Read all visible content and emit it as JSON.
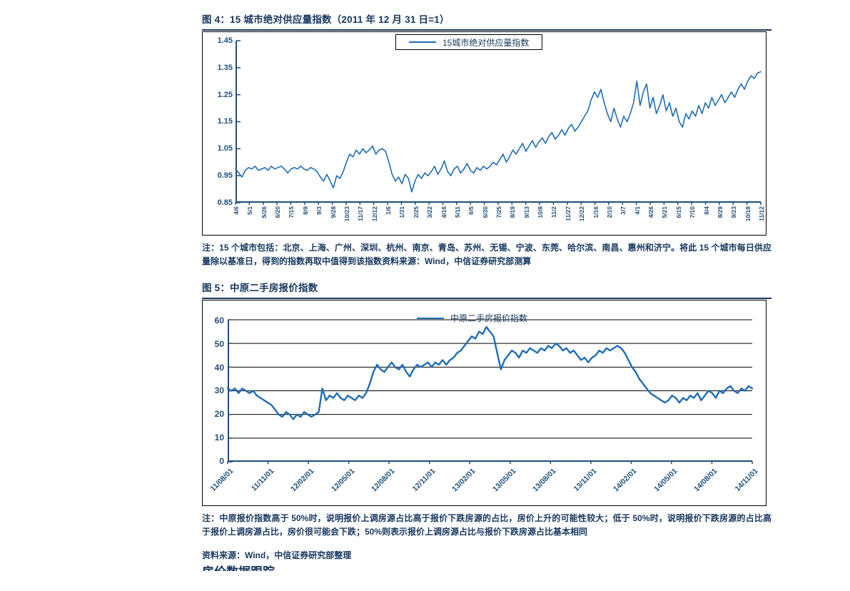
{
  "colors": {
    "navy": "#17375e",
    "axis_blue": "#1f4e79",
    "line_blue": "#1f6cb5",
    "gridline": "#000000",
    "chart_border": "#000000",
    "page_background": "#ffffff"
  },
  "figure4": {
    "title": "图 4：15 城市绝对供应量指数（2011 年 12 月 31 日=1）",
    "legend": "15城市绝对供应量指数",
    "note": "注：15 个城市包括：北京、上海、广州、深圳、杭州、南京、青岛、苏州、无锡、宁波、东莞、哈尔滨、南昌、惠州和济宁。将此 15 个城市每日供应量除以基准日，得到的指数再取中值得到该指数资料来源：Wind，中信证券研究部测算",
    "chart_data": {
      "type": "line",
      "title": "15 城市绝对供应量指数（2011 年 12 月 31 日=1）",
      "legend": [
        "15城市绝对供应量指数"
      ],
      "legend_position": "top-center-boxed",
      "grid": false,
      "ylim": [
        0.85,
        1.45
      ],
      "yticks": [
        0.85,
        0.95,
        1.05,
        1.15,
        1.25,
        1.35,
        1.45
      ],
      "ytick_labels_top_to_bottom": [
        "1.45",
        "1.35",
        "1.25",
        "1.15",
        "1.05",
        "0.95",
        "0.85"
      ],
      "xticks": [
        "4/6",
        "5/1",
        "5/26",
        "6/20",
        "7/15",
        "8/9",
        "9/3",
        "9/28",
        "10/23",
        "11/17",
        "12/12",
        "1/6",
        "1/31",
        "2/25",
        "3/22",
        "4/16",
        "5/11",
        "6/5",
        "6/30",
        "7/25",
        "8/19",
        "9/13",
        "10/8",
        "11/2",
        "11/27",
        "12/22",
        "1/16",
        "2/10",
        "3/7",
        "4/1",
        "4/26",
        "5/21",
        "6/15",
        "7/10",
        "8/4",
        "8/29",
        "9/23",
        "10/18",
        "11/12"
      ],
      "values": [
        0.975,
        0.96,
        0.945,
        0.97,
        0.98,
        0.975,
        0.985,
        0.97,
        0.975,
        0.98,
        0.97,
        0.985,
        0.975,
        0.98,
        0.985,
        0.975,
        0.96,
        0.975,
        0.98,
        0.975,
        0.985,
        0.975,
        0.97,
        0.98,
        0.975,
        0.965,
        0.945,
        0.93,
        0.955,
        0.93,
        0.905,
        0.95,
        0.94,
        0.965,
        1.0,
        1.03,
        1.02,
        1.045,
        1.03,
        1.05,
        1.035,
        1.045,
        1.06,
        1.03,
        1.045,
        1.05,
        1.04,
        1.0,
        0.955,
        0.93,
        0.945,
        0.92,
        0.955,
        0.94,
        0.89,
        0.93,
        0.955,
        0.94,
        0.96,
        0.95,
        0.965,
        0.985,
        0.955,
        0.975,
        1.005,
        0.965,
        0.95,
        0.975,
        0.985,
        0.96,
        0.975,
        0.995,
        0.97,
        0.96,
        0.98,
        0.97,
        0.985,
        0.975,
        0.985,
        1.0,
        0.99,
        1.01,
        1.03,
        1.0,
        1.02,
        1.045,
        1.03,
        1.05,
        1.07,
        1.04,
        1.06,
        1.08,
        1.055,
        1.075,
        1.09,
        1.07,
        1.095,
        1.11,
        1.085,
        1.1,
        1.12,
        1.1,
        1.125,
        1.14,
        1.115,
        1.13,
        1.15,
        1.17,
        1.19,
        1.23,
        1.26,
        1.24,
        1.27,
        1.22,
        1.18,
        1.15,
        1.2,
        1.16,
        1.13,
        1.17,
        1.15,
        1.18,
        1.22,
        1.3,
        1.21,
        1.26,
        1.29,
        1.2,
        1.24,
        1.18,
        1.21,
        1.25,
        1.19,
        1.22,
        1.17,
        1.2,
        1.15,
        1.13,
        1.18,
        1.16,
        1.19,
        1.17,
        1.21,
        1.18,
        1.22,
        1.2,
        1.24,
        1.21,
        1.23,
        1.25,
        1.22,
        1.24,
        1.26,
        1.24,
        1.27,
        1.29,
        1.27,
        1.3,
        1.32,
        1.31,
        1.33,
        1.335
      ]
    }
  },
  "figure5": {
    "title": "图 5：中原二手房报价指数",
    "legend": "中原二手房报价指数",
    "note": "注：中原报价指数高于 50%时，说明报价上调房源占比高于报价下跌房源的占比，房价上升的可能性较大；低于 50%时，说明报价下跌房源的占比高于报价上调房源占比，房价很可能会下跌；50%则表示报价上调房源占比与报价下跌房源占比基本相同",
    "chart_data": {
      "type": "line",
      "title": "中原二手房报价指数",
      "legend": [
        "中原二手房报价指数"
      ],
      "legend_position": "top-center",
      "grid": true,
      "ylim": [
        0,
        60
      ],
      "yticks": [
        0,
        10,
        20,
        30,
        40,
        50,
        60
      ],
      "ytick_labels_top_to_bottom": [
        "60",
        "50",
        "40",
        "30",
        "20",
        "10",
        "0"
      ],
      "xticks": [
        "11/08/01",
        "11/11/01",
        "12/02/01",
        "12/05/01",
        "12/08/01",
        "12/11/01",
        "13/02/01",
        "13/05/01",
        "13/08/01",
        "13/11/01",
        "14/02/01",
        "14/05/01",
        "14/08/01",
        "14/11/01"
      ],
      "values": [
        31,
        30,
        31,
        29,
        31,
        30,
        29,
        30,
        28,
        27,
        26,
        25,
        24,
        22,
        20,
        19,
        21,
        20,
        18,
        20,
        19,
        21,
        20,
        19,
        20,
        21,
        31,
        26,
        28,
        27,
        29,
        27,
        26,
        28,
        27,
        26,
        28,
        27,
        29,
        33,
        38,
        41,
        39,
        38,
        40,
        42,
        40,
        39,
        41,
        38,
        36,
        39,
        41,
        40,
        41,
        42,
        40,
        42,
        41,
        43,
        41,
        43,
        44,
        46,
        47,
        49,
        51,
        53,
        52,
        55,
        54,
        57,
        55,
        53,
        46,
        39,
        43,
        45,
        47,
        46,
        44,
        47,
        46,
        48,
        47,
        46,
        48,
        47,
        49,
        48,
        50,
        49,
        47,
        48,
        46,
        47,
        45,
        43,
        44,
        42,
        44,
        45,
        47,
        46,
        48,
        47,
        48,
        49,
        48,
        46,
        43,
        40,
        38,
        35,
        33,
        31,
        29,
        28,
        27,
        26,
        25,
        26,
        28,
        27,
        25,
        27,
        26,
        28,
        27,
        29,
        26,
        28,
        30,
        29,
        27,
        30,
        29,
        31,
        32,
        30,
        29,
        31,
        30,
        32,
        31
      ]
    }
  },
  "source": "资料来源：Wind，中信证券研究部整理",
  "clipped_text_fragment": "房价数据跟踪"
}
